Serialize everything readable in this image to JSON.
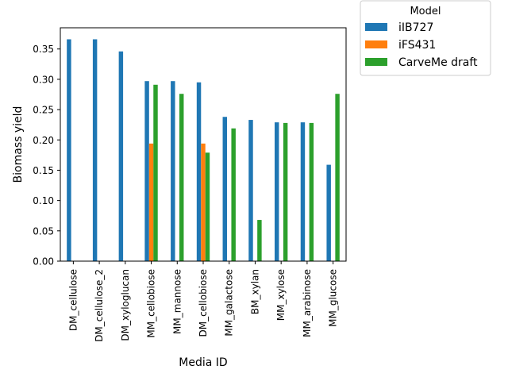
{
  "chart_data": {
    "type": "bar",
    "title": "",
    "xlabel": "Media ID",
    "ylabel": "Biomass yield",
    "ylim": [
      0,
      0.385
    ],
    "yticks": [
      0.0,
      0.05,
      0.1,
      0.15,
      0.2,
      0.25,
      0.3,
      0.35
    ],
    "ytick_labels": [
      "0.00",
      "0.05",
      "0.10",
      "0.15",
      "0.20",
      "0.25",
      "0.30",
      "0.35"
    ],
    "grid": false,
    "legend_title": "Model",
    "legend_position": "outside top-right",
    "categories": [
      "DM_cellulose",
      "DM_cellulose_2",
      "DM_xyloglucan",
      "MM_cellobiose",
      "MM_mannose",
      "DM_cellobiose",
      "MM_galactose",
      "BM_xylan",
      "MM_xylose",
      "MM_arabinose",
      "MM_glucose"
    ],
    "series": [
      {
        "name": "iIB727",
        "color": "#1f77b4",
        "values": [
          0.366,
          0.366,
          0.346,
          0.297,
          0.297,
          0.295,
          0.238,
          0.233,
          0.229,
          0.229,
          0.159
        ]
      },
      {
        "name": "iFS431",
        "color": "#ff7f0e",
        "values": [
          0,
          0,
          0,
          0.194,
          0,
          0.194,
          0,
          0,
          0,
          0,
          0
        ]
      },
      {
        "name": "CarveMe draft",
        "color": "#2ca02c",
        "values": [
          0,
          0,
          0,
          0.291,
          0.276,
          0.179,
          0.219,
          0.068,
          0.228,
          0.228,
          0.276
        ]
      }
    ]
  }
}
